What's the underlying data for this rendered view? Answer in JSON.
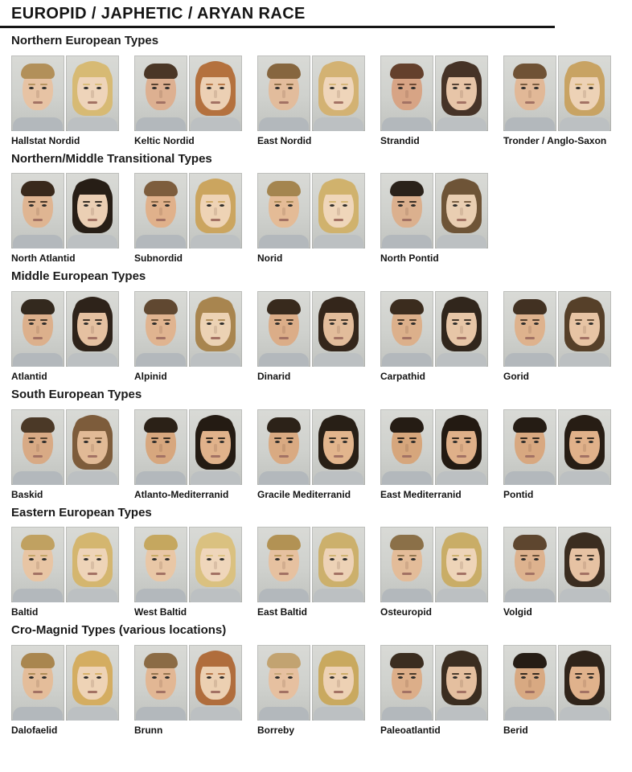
{
  "page": {
    "title": "EUROPID / JAPHETIC / ARYAN RACE"
  },
  "sections": [
    {
      "heading": "Northern European Types",
      "types": [
        {
          "label": "Hallstat Nordid",
          "male": {
            "hair": "#b2905a",
            "skin": "#e7c3a4"
          },
          "female": {
            "hair": "#d7ba74",
            "skin": "#eed4ba"
          }
        },
        {
          "label": "Keltic Nordid",
          "male": {
            "hair": "#4a3626",
            "skin": "#ddb091"
          },
          "female": {
            "hair": "#b4713e",
            "skin": "#ecd0b4"
          }
        },
        {
          "label": "East Nordid",
          "male": {
            "hair": "#86663f",
            "skin": "#e2bc9c"
          },
          "female": {
            "hair": "#d3b273",
            "skin": "#efd5ba"
          }
        },
        {
          "label": "Strandid",
          "male": {
            "hair": "#64402c",
            "skin": "#d7a485"
          },
          "female": {
            "hair": "#463327",
            "skin": "#e7c5a8"
          }
        },
        {
          "label": "Tronder / Anglo-Saxon",
          "male": {
            "hair": "#6f5235",
            "skin": "#e1b897"
          },
          "female": {
            "hair": "#c8a363",
            "skin": "#edd2b6"
          }
        }
      ]
    },
    {
      "heading": "Northern/Middle Transitional Types",
      "types": [
        {
          "label": "North Atlantid",
          "male": {
            "hair": "#39291c",
            "skin": "#dfb592"
          },
          "female": {
            "hair": "#271e16",
            "skin": "#ebcfb4"
          }
        },
        {
          "label": "Subnordid",
          "male": {
            "hair": "#7d5d3d",
            "skin": "#e0b18b"
          },
          "female": {
            "hair": "#cba55f",
            "skin": "#eed3b5"
          }
        },
        {
          "label": "Norid",
          "male": {
            "hair": "#a4854f",
            "skin": "#e4bb96"
          },
          "female": {
            "hair": "#d0b26d",
            "skin": "#efd6ba"
          }
        },
        {
          "label": "North Pontid",
          "male": {
            "hair": "#2a221a",
            "skin": "#dbb08e"
          },
          "female": {
            "hair": "#6e5437",
            "skin": "#e9ceb2"
          }
        }
      ]
    },
    {
      "heading": "Middle European Types",
      "types": [
        {
          "label": "Atlantid",
          "male": {
            "hair": "#33291e",
            "skin": "#dcb08c"
          },
          "female": {
            "hair": "#2e231a",
            "skin": "#e5c1a1"
          }
        },
        {
          "label": "Alpinid",
          "male": {
            "hair": "#604831",
            "skin": "#e0b490"
          },
          "female": {
            "hair": "#a8854f",
            "skin": "#ecd2b4"
          }
        },
        {
          "label": "Dinarid",
          "male": {
            "hair": "#382a1d",
            "skin": "#dbad88"
          },
          "female": {
            "hair": "#34261b",
            "skin": "#e2bc9b"
          }
        },
        {
          "label": "Carpathid",
          "male": {
            "hair": "#3b2c1e",
            "skin": "#dcb08b"
          },
          "female": {
            "hair": "#31261c",
            "skin": "#e7c6a7"
          }
        },
        {
          "label": "Gorid",
          "male": {
            "hair": "#423122",
            "skin": "#deb28d"
          },
          "female": {
            "hair": "#564029",
            "skin": "#e7c4a4"
          }
        }
      ]
    },
    {
      "heading": "South European Types",
      "types": [
        {
          "label": "Baskid",
          "male": {
            "hair": "#4b3927",
            "skin": "#d8aa85"
          },
          "female": {
            "hair": "#7d5c3b",
            "skin": "#e1ba96"
          }
        },
        {
          "label": "Atlanto-Mediterranid",
          "male": {
            "hair": "#2b2117",
            "skin": "#d7a77e"
          },
          "female": {
            "hair": "#241b13",
            "skin": "#e0b28b"
          }
        },
        {
          "label": "Gracile Mediterranid",
          "male": {
            "hair": "#2c2218",
            "skin": "#d9aa82"
          },
          "female": {
            "hair": "#281f16",
            "skin": "#e2b58d"
          }
        },
        {
          "label": "East Mediterranid",
          "male": {
            "hair": "#251c14",
            "skin": "#d6a67c"
          },
          "female": {
            "hair": "#231a12",
            "skin": "#dfb089"
          }
        },
        {
          "label": "Pontid",
          "male": {
            "hair": "#251c14",
            "skin": "#d8a880"
          },
          "female": {
            "hair": "#271d14",
            "skin": "#e0b18a"
          }
        }
      ]
    },
    {
      "heading": "Eastern European Types",
      "types": [
        {
          "label": "Baltid",
          "male": {
            "hair": "#c0a161",
            "skin": "#e8c5a4"
          },
          "female": {
            "hair": "#d4b66f",
            "skin": "#eed4b8"
          }
        },
        {
          "label": "West Baltid",
          "male": {
            "hair": "#c5a75f",
            "skin": "#e9c7a6"
          },
          "female": {
            "hair": "#dac180",
            "skin": "#efd6bb"
          }
        },
        {
          "label": "East Baltid",
          "male": {
            "hair": "#b29254",
            "skin": "#e6c1a0"
          },
          "female": {
            "hair": "#ccb06c",
            "skin": "#edd2b6"
          }
        },
        {
          "label": "Osteuropid",
          "male": {
            "hair": "#8b7048",
            "skin": "#e3bc99"
          },
          "female": {
            "hair": "#c9ad67",
            "skin": "#eed4b8"
          }
        },
        {
          "label": "Volgid",
          "male": {
            "hair": "#5e462f",
            "skin": "#ddb28e"
          },
          "female": {
            "hair": "#3b2d20",
            "skin": "#e6c2a3"
          }
        }
      ]
    },
    {
      "heading": "Cro-Magnid Types (various locations)",
      "types": [
        {
          "label": "Dalofaelid",
          "male": {
            "hair": "#a9864f",
            "skin": "#e4bd9a"
          },
          "female": {
            "hair": "#d4ad61",
            "skin": "#eed3b6"
          }
        },
        {
          "label": "Brunn",
          "male": {
            "hair": "#8b6b45",
            "skin": "#e2b794"
          },
          "female": {
            "hair": "#b06d3c",
            "skin": "#ecd0b2"
          }
        },
        {
          "label": "Borreby",
          "male": {
            "hair": "#c2a371",
            "skin": "#e6c0a0"
          },
          "female": {
            "hair": "#c9a95f",
            "skin": "#edd1b4"
          }
        },
        {
          "label": "Paleoatlantid",
          "male": {
            "hair": "#3b2d20",
            "skin": "#dcae89"
          },
          "female": {
            "hair": "#3b2d20",
            "skin": "#e4bf9f"
          }
        },
        {
          "label": "Berid",
          "male": {
            "hair": "#261d15",
            "skin": "#d8a982"
          },
          "female": {
            "hair": "#30241a",
            "skin": "#e0b28c"
          }
        }
      ]
    }
  ]
}
